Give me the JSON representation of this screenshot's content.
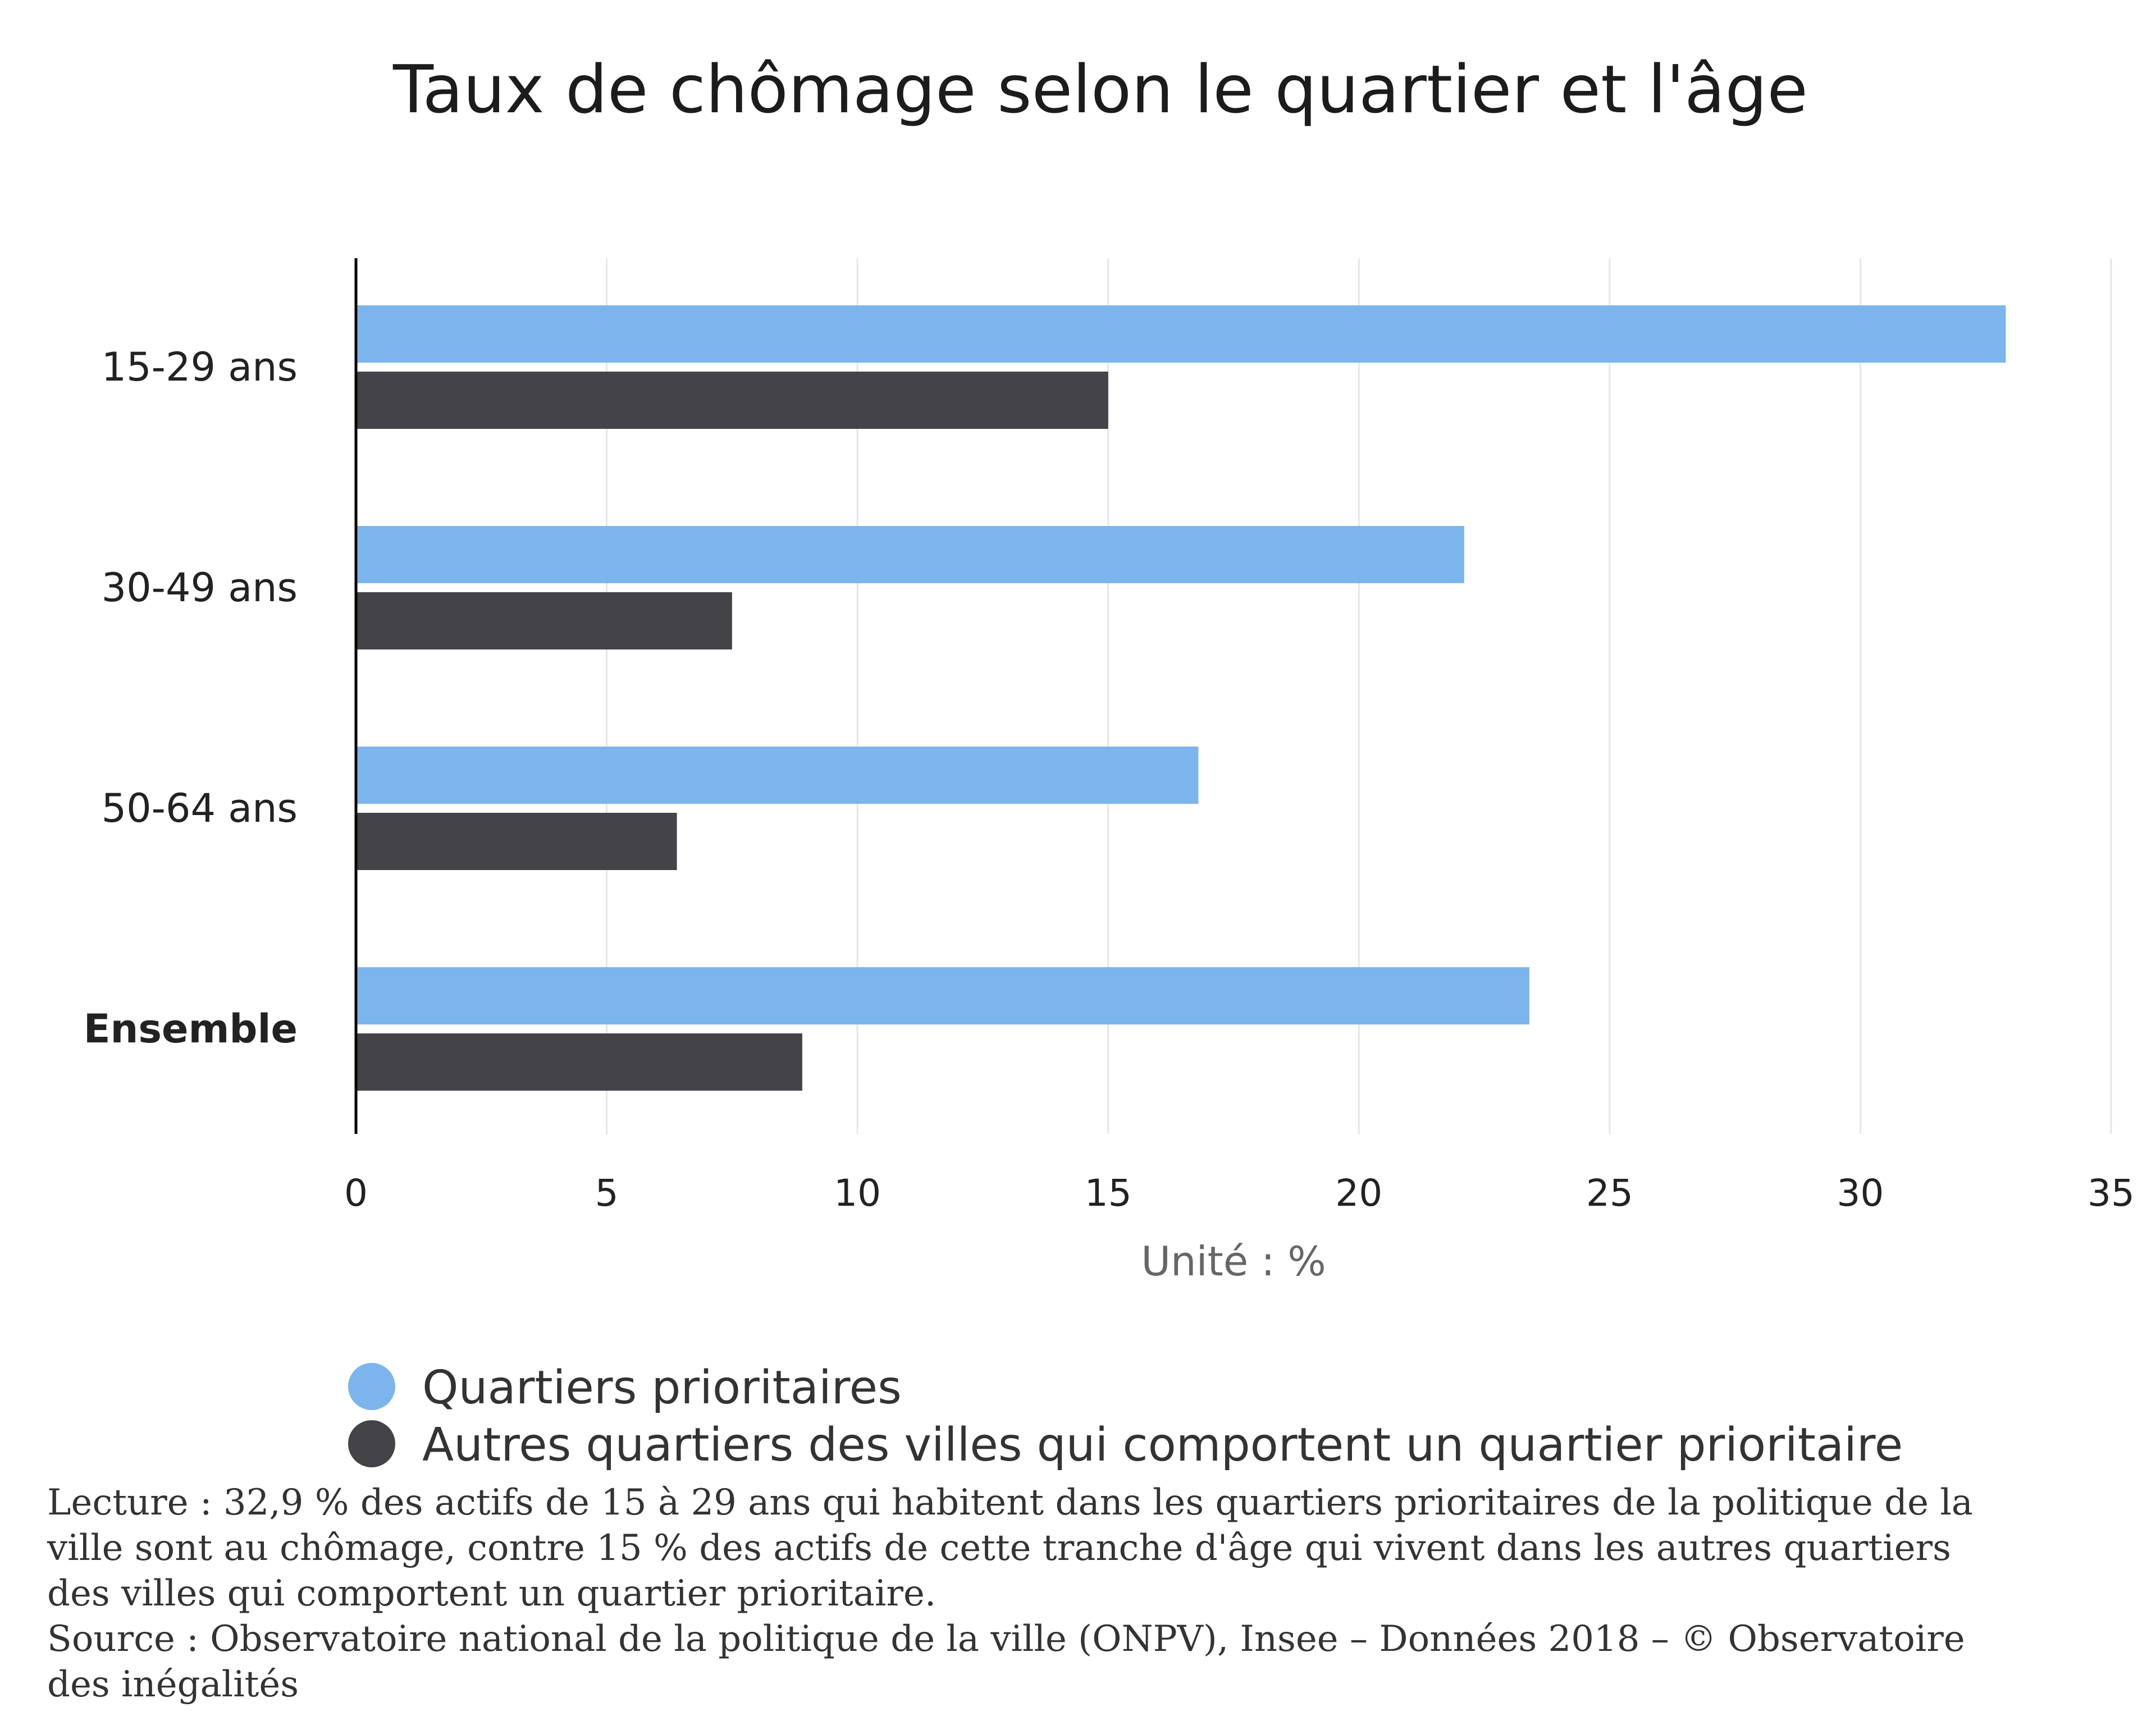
{
  "colors": {
    "series1": "#7cb5ec",
    "series2": "#434348",
    "grid": "#e6e6e6",
    "axis": "#000000"
  },
  "chart_data": {
    "type": "bar",
    "orientation": "horizontal",
    "title": "Taux de chômage selon le quartier et l'âge",
    "categories": [
      "15-29 ans",
      "30-49 ans",
      "50-64 ans",
      "Ensemble"
    ],
    "bold_categories": [
      "Ensemble"
    ],
    "series": [
      {
        "name": "Quartiers prioritaires",
        "values": [
          32.9,
          22.1,
          16.8,
          23.4
        ]
      },
      {
        "name": "Autres quartiers des villes qui comportent un quartier prioritaire",
        "values": [
          15.0,
          7.5,
          6.4,
          8.9
        ]
      }
    ],
    "xlabel": "Unité : %",
    "xlim": [
      0,
      35
    ],
    "xticks": [
      "0",
      "5",
      "10",
      "15",
      "20",
      "25",
      "30",
      "35"
    ],
    "grid": true,
    "legend_position": "bottom-left"
  },
  "notes": {
    "lecture_lines": [
      "Lecture : 32,9 % des actifs de 15 à 29 ans qui habitent dans les quartiers prioritaires de la politique de la",
      "ville sont au chômage, contre 15 % des actifs de cette tranche d'âge qui vivent dans les autres quartiers",
      "des villes qui comportent un quartier prioritaire."
    ],
    "source_lines": [
      "Source : Observatoire national de la politique de la ville (ONPV), Insee – Données 2018 – © Observatoire",
      "des inégalités"
    ]
  }
}
